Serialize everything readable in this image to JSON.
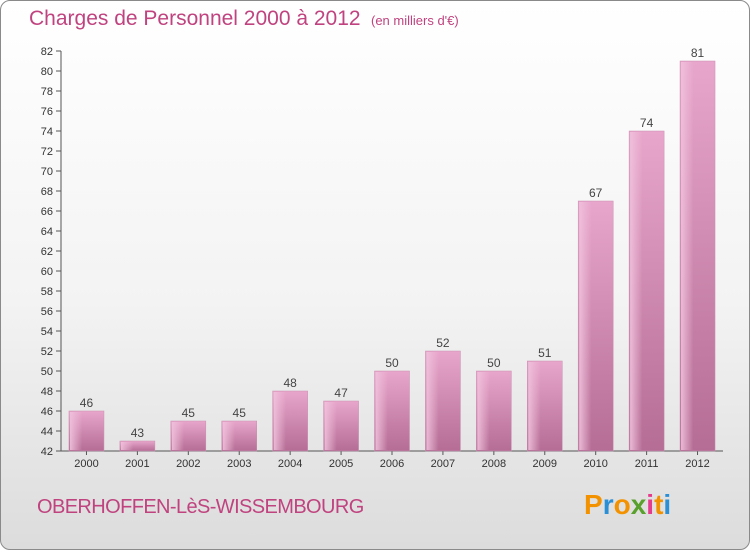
{
  "header": {
    "title": "Charges de Personnel 2000 à 2012",
    "subtitle": "(en milliers d'€)"
  },
  "footer": {
    "commune": "OBERHOFFEN-LèS-WISSEMBOURG",
    "logo": [
      "P",
      "r",
      "o",
      "x",
      "i",
      "t",
      "i"
    ],
    "logo_colors": [
      "#f39200",
      "#2b8fd6",
      "#f39200",
      "#5aa02c",
      "#e63a8c",
      "#f39200",
      "#2b8fd6"
    ]
  },
  "chart_data": {
    "type": "bar",
    "title": "Charges de Personnel 2000 à 2012",
    "subtitle": "(en milliers d'€)",
    "categories": [
      "2000",
      "2001",
      "2002",
      "2003",
      "2004",
      "2005",
      "2006",
      "2007",
      "2008",
      "2009",
      "2010",
      "2011",
      "2012"
    ],
    "values": [
      46,
      43,
      45,
      45,
      48,
      47,
      50,
      52,
      50,
      51,
      67,
      74,
      81
    ],
    "value_labels": [
      "46",
      "43",
      "45",
      "45",
      "48",
      "47",
      "50",
      "52",
      "50",
      "51",
      "67",
      "74",
      "81"
    ],
    "ylim": [
      42,
      82
    ],
    "yticks": [
      42,
      44,
      46,
      48,
      50,
      52,
      54,
      56,
      58,
      60,
      62,
      64,
      66,
      68,
      70,
      72,
      74,
      76,
      78,
      80,
      82
    ],
    "ytick_labels": [
      "42",
      "44",
      "46",
      "48",
      "50",
      "52",
      "54",
      "56",
      "58",
      "60",
      "62",
      "64",
      "66",
      "68",
      "70",
      "72",
      "74",
      "76",
      "78",
      "80",
      "82"
    ],
    "grid": false,
    "bar_color": "#d27fae"
  }
}
